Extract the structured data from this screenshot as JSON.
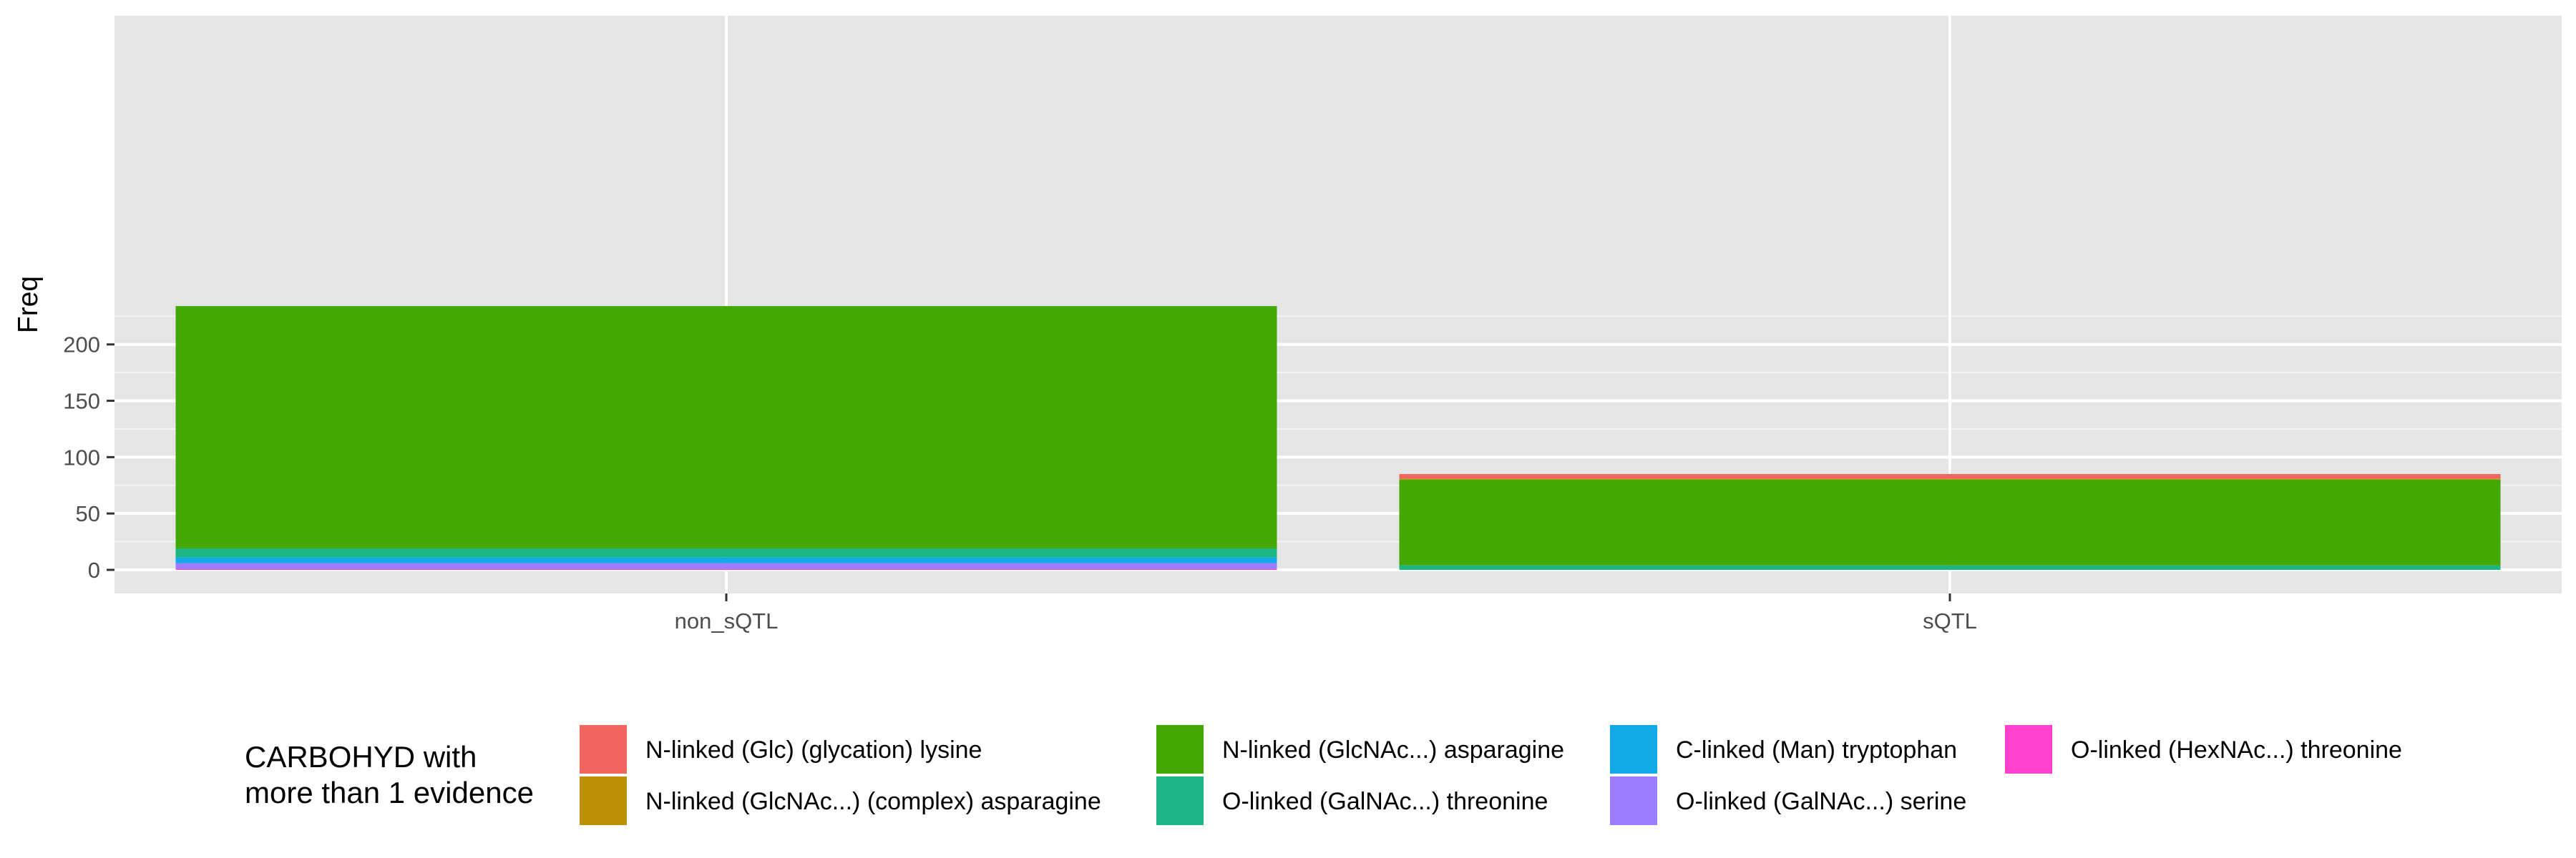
{
  "chart_data": {
    "type": "bar",
    "stacked": true,
    "categories": [
      "non_sQTL",
      "sQTL"
    ],
    "ylabel": "Freq",
    "xlabel": "",
    "ylim": [
      0,
      236
    ],
    "yticks": [
      0,
      50,
      100,
      150,
      200
    ],
    "grid": true,
    "legend_position": "bottom",
    "legend_title": [
      "CARBOHYD with",
      "more than 1 evidence"
    ],
    "series": [
      {
        "name": "O-linked (HexNAc...) threonine",
        "color": "#FF40D1",
        "values": [
          1,
          0
        ]
      },
      {
        "name": "O-linked (GalNAc...) serine",
        "color": "#9B7EFF",
        "values": [
          5,
          0
        ]
      },
      {
        "name": "C-linked (Man) tryptophan",
        "color": "#12A9E8",
        "values": [
          5,
          0
        ]
      },
      {
        "name": "O-linked (GalNAc...) threonine",
        "color": "#1BB584",
        "values": [
          8,
          4
        ]
      },
      {
        "name": "N-linked (GlcNAc...) asparagine",
        "color": "#44A804",
        "values": [
          215,
          76
        ]
      },
      {
        "name": "N-linked (GlcNAc...) (complex) asparagine",
        "color": "#BB9006",
        "values": [
          0,
          1
        ]
      },
      {
        "name": "N-linked (Glc) (glycation) lysine",
        "color": "#F2645E",
        "values": [
          0,
          4
        ]
      }
    ],
    "legend_order": [
      "N-linked (Glc) (glycation) lysine",
      "N-linked (GlcNAc...) (complex) asparagine",
      "N-linked (GlcNAc...) asparagine",
      "O-linked (GalNAc...) threonine",
      "C-linked (Man) tryptophan",
      "O-linked (GalNAc...) serine",
      "O-linked (HexNAc...) threonine"
    ]
  },
  "colors": {
    "panel_background": "#E5E5E5",
    "grid_major": "#FFFFFF",
    "grid_minor": "#F2F2F2",
    "tick_text": "#4D4D4D"
  }
}
